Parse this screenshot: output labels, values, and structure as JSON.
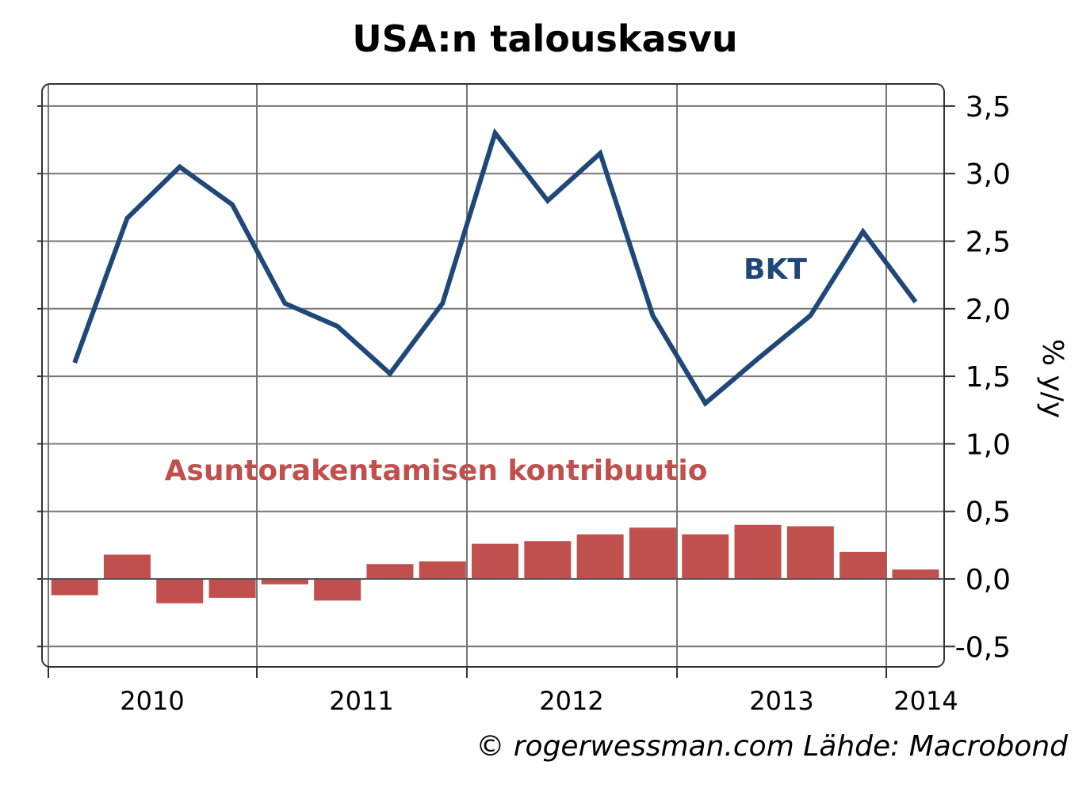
{
  "title": "USA:n talouskasvu",
  "source": "© rogerwessman.com Lähde: Macrobond",
  "chart_data": {
    "type": "line",
    "title": "USA:n talouskasvu",
    "ylabel": "% y/y",
    "ylim": [
      -0.6,
      3.6
    ],
    "y_ticks": [
      "3,5",
      "3,0",
      "2,5",
      "2,0",
      "1,5",
      "1,0",
      "0,5",
      "0,0",
      "-0,5"
    ],
    "y_tick_values": [
      3.5,
      3.0,
      2.5,
      2.0,
      1.5,
      1.0,
      0.5,
      0.0,
      -0.5
    ],
    "x_labels": [
      "2010",
      "2011",
      "2012",
      "2013",
      "2014"
    ],
    "quarters": [
      "2009 Q4",
      "2010 Q1",
      "2010 Q2",
      "2010 Q3",
      "2010 Q4",
      "2011 Q1",
      "2011 Q2",
      "2011 Q3",
      "2011 Q4",
      "2012 Q1",
      "2012 Q2",
      "2012 Q3",
      "2012 Q4",
      "2013 Q1",
      "2013 Q2",
      "2013 Q3",
      "2013 Q4"
    ],
    "grid": true,
    "series": [
      {
        "name": "BKT",
        "type": "line",
        "color": "#1f4878",
        "values": [
          1.6,
          2.67,
          3.05,
          2.77,
          2.04,
          1.87,
          1.52,
          2.04,
          3.3,
          2.8,
          3.15,
          1.95,
          1.3,
          1.63,
          1.95,
          2.57,
          2.05
        ]
      },
      {
        "name": "Asuntorakentamisen kontribuutio",
        "type": "bar",
        "color": "#c0504d",
        "values": [
          -0.12,
          0.18,
          -0.18,
          -0.14,
          -0.04,
          -0.16,
          0.11,
          0.13,
          0.26,
          0.28,
          0.33,
          0.38,
          0.33,
          0.4,
          0.39,
          0.2,
          0.07
        ]
      }
    ]
  }
}
